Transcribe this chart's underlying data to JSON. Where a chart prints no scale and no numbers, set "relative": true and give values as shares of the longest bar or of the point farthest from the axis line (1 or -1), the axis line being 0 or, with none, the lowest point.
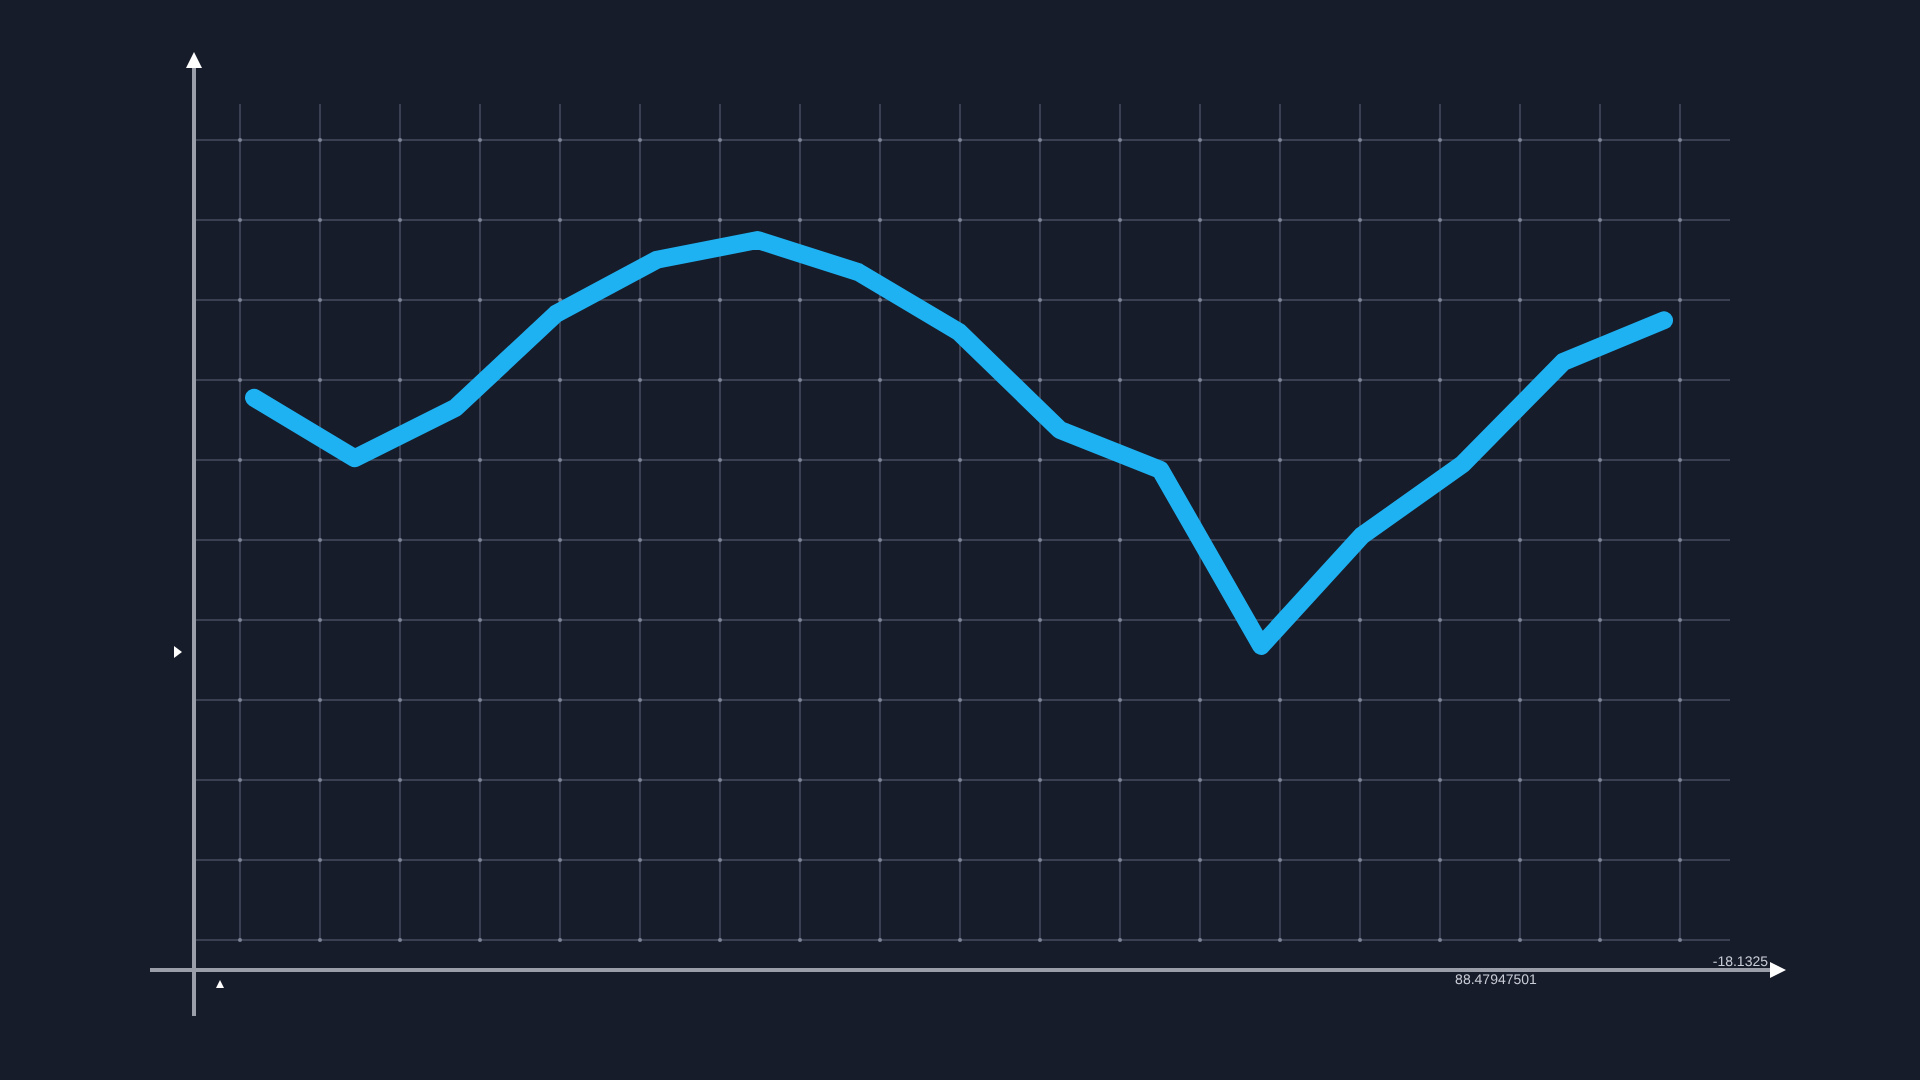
{
  "chart_data": {
    "type": "line",
    "relative": true,
    "categories": [
      null,
      null,
      null,
      null,
      null,
      null,
      null,
      null,
      null,
      null,
      null,
      null,
      null,
      null,
      null
    ],
    "series": [
      {
        "color": "#1fb2f2",
        "values": [
          0.784,
          0.701,
          0.77,
          0.899,
          0.973,
          1,
          0.956,
          0.874,
          0.74,
          0.685,
          0.444,
          0.595,
          0.693,
          0.833,
          0.89
        ]
      }
    ],
    "annotations": [
      "88.47947501",
      "-18.1325"
    ],
    "grid": true,
    "line_style": "solid"
  }
}
